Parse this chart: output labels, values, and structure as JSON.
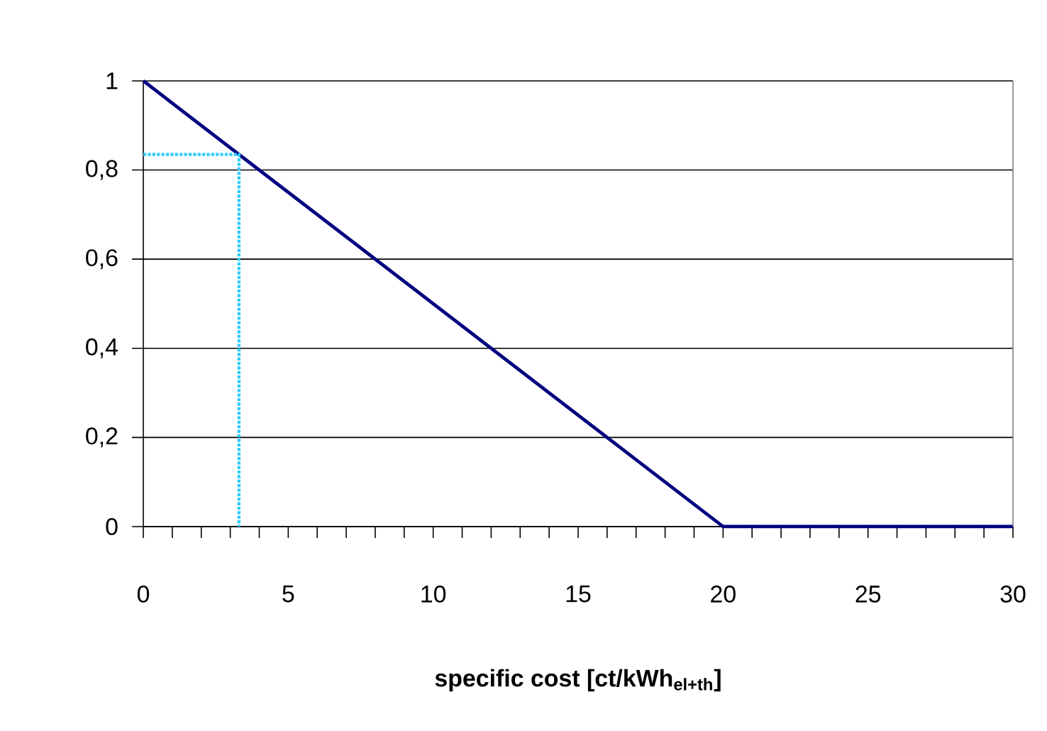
{
  "chart_data": {
    "type": "line",
    "xlabel": "**specific cost [ct/kWh$_{el+th}$]**",
    "series": [
      {
        "color": "#000080",
        "x": [
          0,
          20,
          30
        ],
        "values": [
          1,
          0,
          0
        ],
        "line_style": "solid"
      },
      {
        "color": "#33ccff",
        "x": [
          0,
          3.3,
          3.3
        ],
        "values": [
          0.835,
          0.835,
          0
        ],
        "line_style": "dotted"
      }
    ],
    "xlim": [
      0,
      30
    ],
    "xticks": [
      0,
      5,
      10,
      15,
      20,
      25,
      30
    ],
    "ylim": [
      0,
      1
    ],
    "yticks": [
      0,
      {
        "value": 0.2,
        "label": "0,2"
      },
      {
        "value": 0.4,
        "label": "0,4"
      },
      {
        "value": 0.6,
        "label": "0,6"
      },
      {
        "value": 0.8,
        "label": "0,8"
      },
      1
    ],
    "grid": "y",
    "marker": "none"
  }
}
